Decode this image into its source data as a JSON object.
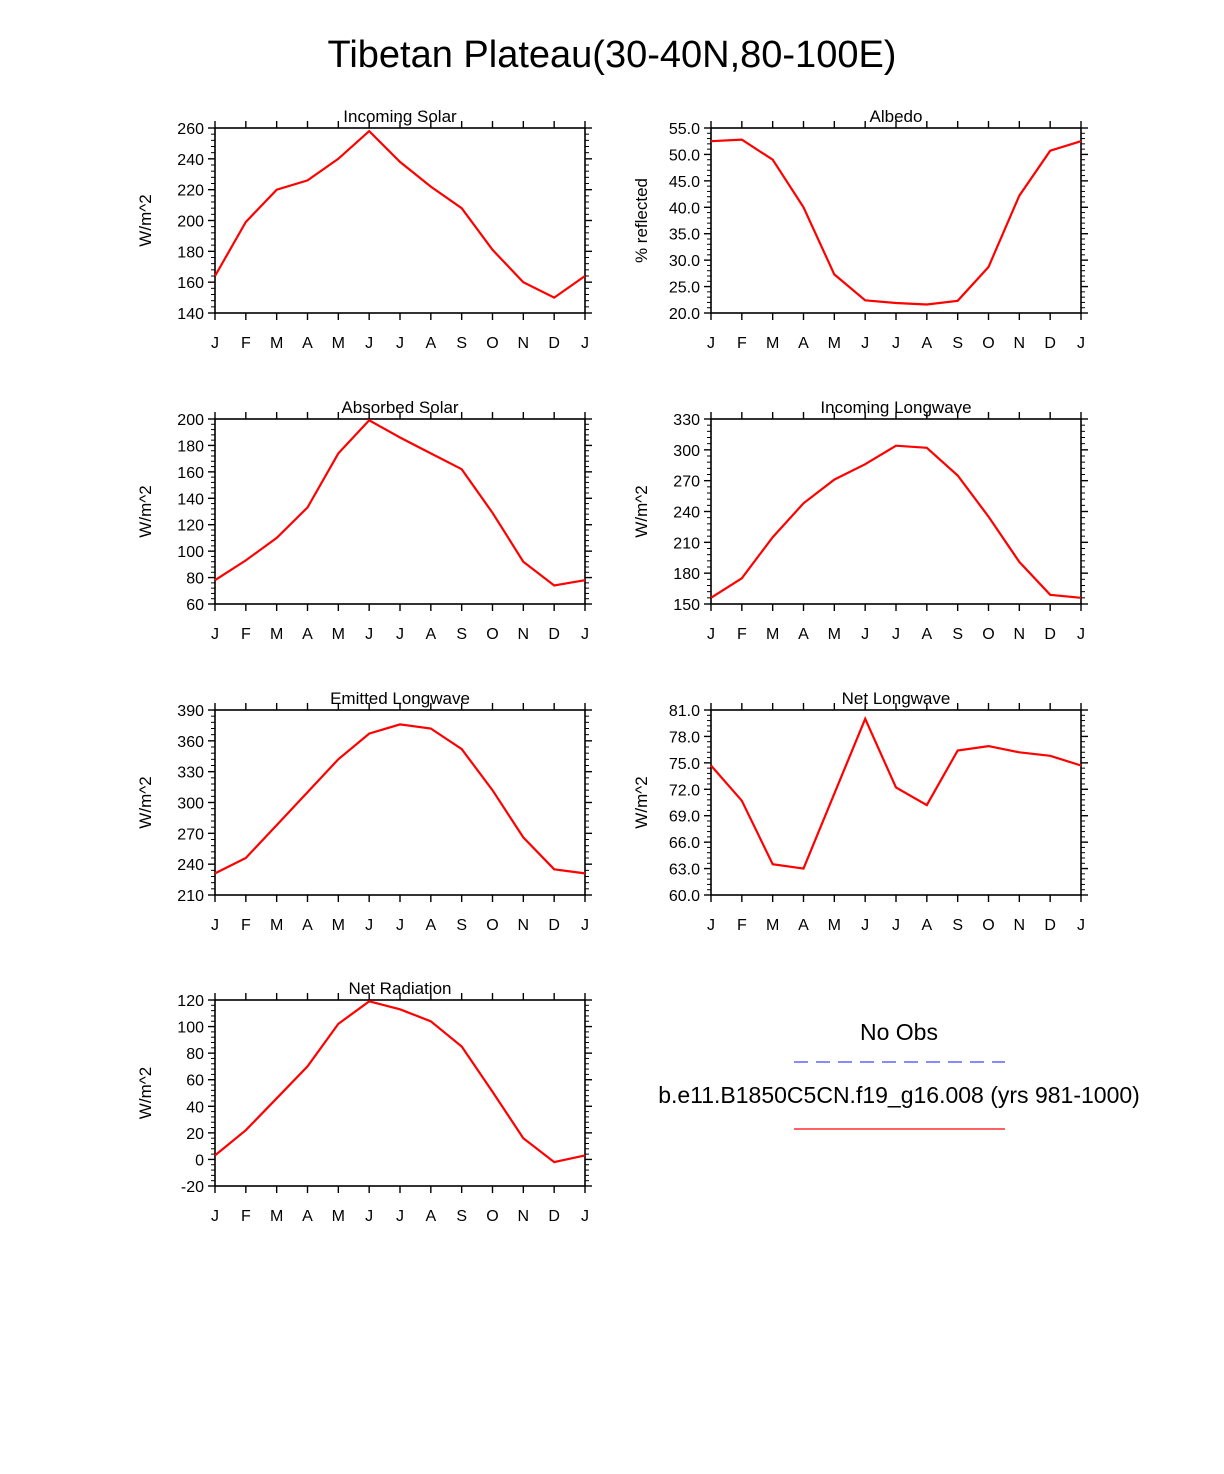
{
  "title": "Tibetan Plateau(30-40N,80-100E)",
  "colors": {
    "model": "#ff0000",
    "obs": "#4444ff",
    "axis": "#000000"
  },
  "legend": {
    "obs_label": "No Obs",
    "model_label": "b.e11.B1850C5CN.f19_g16.008 (yrs 981-1000)"
  },
  "chart_data": [
    {
      "type": "line",
      "title": "Incoming Solar",
      "ylabel": "W/m^2",
      "x": [
        "J",
        "F",
        "M",
        "A",
        "M",
        "J",
        "J",
        "A",
        "S",
        "O",
        "N",
        "D",
        "J"
      ],
      "ylim": [
        140,
        260
      ],
      "yticks": [
        "140",
        "160",
        "180",
        "200",
        "220",
        "240",
        "260"
      ],
      "series": [
        {
          "name": "b.e11.B1850C5CN.f19_g16.008 (yrs 981-1000)",
          "values": [
            164,
            199,
            220,
            226,
            240,
            258,
            238,
            222,
            208,
            181,
            160,
            150,
            164
          ]
        }
      ]
    },
    {
      "type": "line",
      "title": "Albedo",
      "ylabel": "% reflected",
      "x": [
        "J",
        "F",
        "M",
        "A",
        "M",
        "J",
        "J",
        "A",
        "S",
        "O",
        "N",
        "D",
        "J"
      ],
      "ylim": [
        20,
        55
      ],
      "yticks": [
        "20.0",
        "25.0",
        "30.0",
        "35.0",
        "40.0",
        "45.0",
        "50.0",
        "55.0"
      ],
      "series": [
        {
          "name": "b.e11.B1850C5CN.f19_g16.008 (yrs 981-1000)",
          "values": [
            52.5,
            52.8,
            49.0,
            40.0,
            27.3,
            22.4,
            21.9,
            21.6,
            22.3,
            28.7,
            42.2,
            50.7,
            52.5
          ]
        }
      ]
    },
    {
      "type": "line",
      "title": "Absorbed Solar",
      "ylabel": "W/m^2",
      "x": [
        "J",
        "F",
        "M",
        "A",
        "M",
        "J",
        "J",
        "A",
        "S",
        "O",
        "N",
        "D",
        "J"
      ],
      "ylim": [
        60,
        200
      ],
      "yticks": [
        "60",
        "80",
        "100",
        "120",
        "140",
        "160",
        "180",
        "200"
      ],
      "series": [
        {
          "name": "b.e11.B1850C5CN.f19_g16.008 (yrs 981-1000)",
          "values": [
            78,
            93,
            110,
            133,
            174,
            199,
            186,
            174,
            162,
            129,
            92,
            74,
            78
          ]
        }
      ]
    },
    {
      "type": "line",
      "title": "Incoming Longwave",
      "ylabel": "W/m^2",
      "x": [
        "J",
        "F",
        "M",
        "A",
        "M",
        "J",
        "J",
        "A",
        "S",
        "O",
        "N",
        "D",
        "J"
      ],
      "ylim": [
        150,
        330
      ],
      "yticks": [
        "150",
        "180",
        "210",
        "240",
        "270",
        "300",
        "330"
      ],
      "series": [
        {
          "name": "b.e11.B1850C5CN.f19_g16.008 (yrs 981-1000)",
          "values": [
            156,
            175,
            215,
            248,
            271,
            286,
            304,
            302,
            275,
            235,
            191,
            159,
            156
          ]
        }
      ]
    },
    {
      "type": "line",
      "title": "Emitted Longwave",
      "ylabel": "W/m^2",
      "x": [
        "J",
        "F",
        "M",
        "A",
        "M",
        "J",
        "J",
        "A",
        "S",
        "O",
        "N",
        "D",
        "J"
      ],
      "ylim": [
        210,
        390
      ],
      "yticks": [
        "210",
        "240",
        "270",
        "300",
        "330",
        "360",
        "390"
      ],
      "series": [
        {
          "name": "b.e11.B1850C5CN.f19_g16.008 (yrs 981-1000)",
          "values": [
            231,
            246,
            278,
            310,
            342,
            367,
            376,
            372,
            352,
            312,
            266,
            235,
            231
          ]
        }
      ]
    },
    {
      "type": "line",
      "title": "Net Longwave",
      "ylabel": "W/m^2",
      "x": [
        "J",
        "F",
        "M",
        "A",
        "M",
        "J",
        "J",
        "A",
        "S",
        "O",
        "N",
        "D",
        "J"
      ],
      "ylim": [
        60,
        81
      ],
      "yticks": [
        "60.0",
        "63.0",
        "66.0",
        "69.0",
        "72.0",
        "75.0",
        "78.0",
        "81.0"
      ],
      "series": [
        {
          "name": "b.e11.B1850C5CN.f19_g16.008 (yrs 981-1000)",
          "values": [
            74.7,
            70.7,
            63.5,
            63.0,
            71.5,
            80.0,
            72.2,
            70.2,
            76.4,
            76.9,
            76.2,
            75.8,
            74.7
          ]
        }
      ]
    },
    {
      "type": "line",
      "title": "Net Radiation",
      "ylabel": "W/m^2",
      "x": [
        "J",
        "F",
        "M",
        "A",
        "M",
        "J",
        "J",
        "A",
        "S",
        "O",
        "N",
        "D",
        "J"
      ],
      "ylim": [
        -20,
        120
      ],
      "yticks": [
        "-20",
        "0",
        "20",
        "40",
        "60",
        "80",
        "100",
        "120"
      ],
      "series": [
        {
          "name": "b.e11.B1850C5CN.f19_g16.008 (yrs 981-1000)",
          "values": [
            3,
            22,
            46,
            70,
            102,
            119,
            113,
            104,
            85,
            51,
            16,
            -2,
            3
          ]
        }
      ]
    }
  ]
}
